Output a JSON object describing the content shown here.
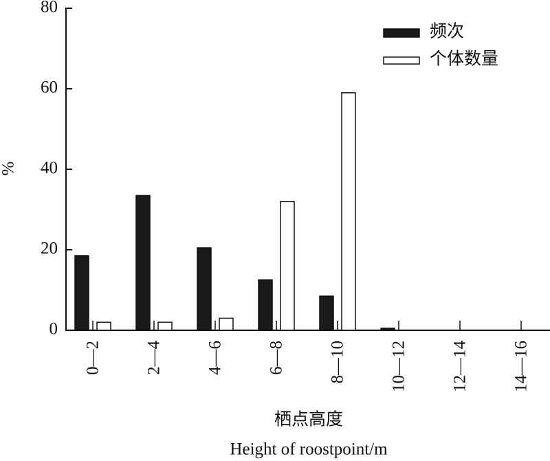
{
  "chart_data": {
    "type": "bar",
    "xlabel": "栖点高度",
    "xlabel_en": "Height of roostpoint/m",
    "ylabel": "%",
    "categories": [
      "0—2",
      "2—4",
      "4—6",
      "6—8",
      "8—10",
      "10—12",
      "12—14",
      "14—16"
    ],
    "series": [
      {
        "name": "频次",
        "color": "#1a1a1a",
        "values": [
          18.5,
          33.5,
          20.5,
          12.5,
          8.5,
          0.5,
          0,
          0
        ]
      },
      {
        "name": "个体数量",
        "color": "#ffffff",
        "values": [
          2,
          2,
          3,
          32,
          59,
          0,
          0,
          0
        ]
      }
    ],
    "ylim": [
      0,
      80
    ],
    "yticks": [
      0,
      20,
      40,
      60,
      80
    ],
    "legend": "upper right",
    "grid": false
  }
}
